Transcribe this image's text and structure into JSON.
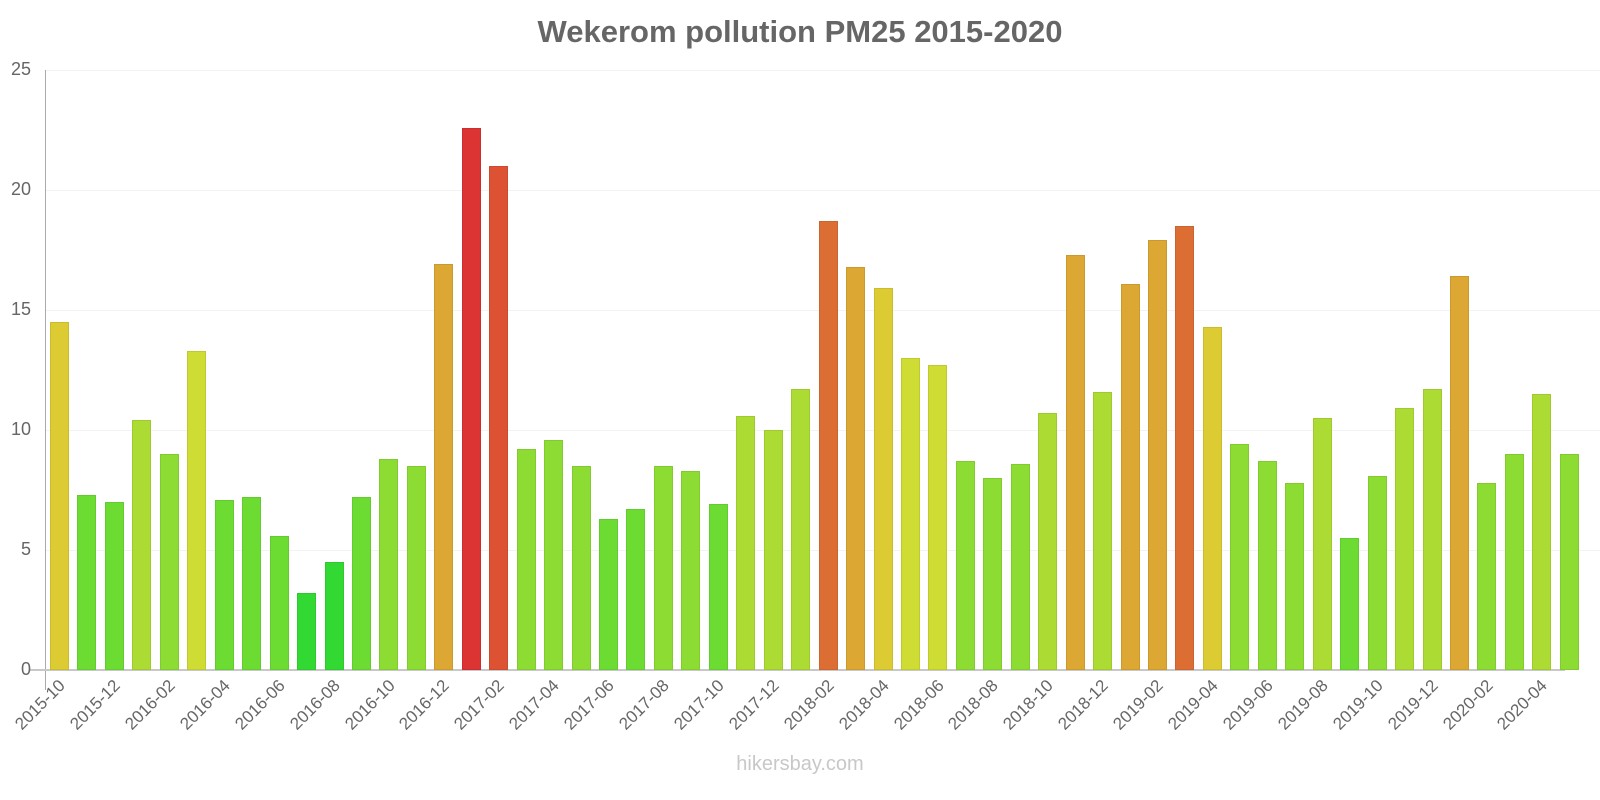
{
  "chart_data": {
    "type": "bar",
    "title": "Wekerom pollution PM25 2015-2020",
    "xlabel": "",
    "ylabel": "",
    "ylim": [
      0,
      25
    ],
    "yticks": [
      0,
      5,
      10,
      15,
      20,
      25
    ],
    "grid": true,
    "legend": null,
    "categories": [
      "2015-10",
      "2015-11",
      "2015-12",
      "2016-01",
      "2016-02",
      "2016-03",
      "2016-04",
      "2016-05",
      "2016-06",
      "2016-07",
      "2016-08",
      "2016-09",
      "2016-10",
      "2016-11",
      "2016-12",
      "2017-01",
      "2017-02",
      "2017-03",
      "2017-04",
      "2017-05",
      "2017-06",
      "2017-07",
      "2017-08",
      "2017-09",
      "2017-10",
      "2017-11",
      "2017-12",
      "2018-01",
      "2018-02",
      "2018-03",
      "2018-04",
      "2018-05",
      "2018-06",
      "2018-07",
      "2018-08",
      "2018-09",
      "2018-10",
      "2018-11",
      "2018-12",
      "2019-01",
      "2019-02",
      "2019-03",
      "2019-04",
      "2019-05",
      "2019-06",
      "2019-07",
      "2019-08",
      "2019-09",
      "2019-10",
      "2019-11",
      "2019-12",
      "2020-01",
      "2020-02",
      "2020-03",
      "2020-04",
      "2020-05"
    ],
    "values": [
      14.5,
      7.3,
      7.0,
      10.4,
      9.0,
      13.3,
      7.1,
      7.2,
      5.6,
      3.2,
      4.5,
      7.2,
      8.8,
      8.5,
      16.9,
      22.6,
      21.0,
      9.2,
      9.6,
      8.5,
      6.3,
      6.7,
      8.5,
      8.3,
      6.9,
      10.6,
      10.0,
      11.7,
      18.7,
      16.8,
      15.9,
      13.0,
      12.7,
      8.7,
      8.0,
      8.6,
      10.7,
      17.3,
      11.6,
      16.1,
      17.9,
      18.5,
      14.3,
      9.4,
      8.7,
      7.8,
      10.5,
      5.5,
      8.1,
      10.9,
      11.7,
      16.4,
      7.8,
      9.0,
      11.5,
      9.0
    ],
    "visible_xtick_labels": [
      "2015-10",
      "2015-12",
      "2016-02",
      "2016-04",
      "2016-06",
      "2016-08",
      "2016-10",
      "2016-12",
      "2017-02",
      "2017-04",
      "2017-06",
      "2017-08",
      "2017-10",
      "2017-12",
      "2018-02",
      "2018-04",
      "2018-06",
      "2018-08",
      "2018-10",
      "2018-12",
      "2019-02",
      "2019-04",
      "2019-06",
      "2019-08",
      "2019-10",
      "2019-12",
      "2020-02",
      "2020-04"
    ]
  },
  "colors": {
    "very_low": "#33d933",
    "low": "#6cdc33",
    "moderate_low": "#8cdc33",
    "moderate": "#acdc33",
    "mid": "#cfdc33",
    "elevated": "#dccb33",
    "high": "#dca833",
    "very_high": "#dc6e33",
    "extreme": "#dc5233",
    "max": "#dc3333"
  },
  "watermark": "hikersbay.com"
}
